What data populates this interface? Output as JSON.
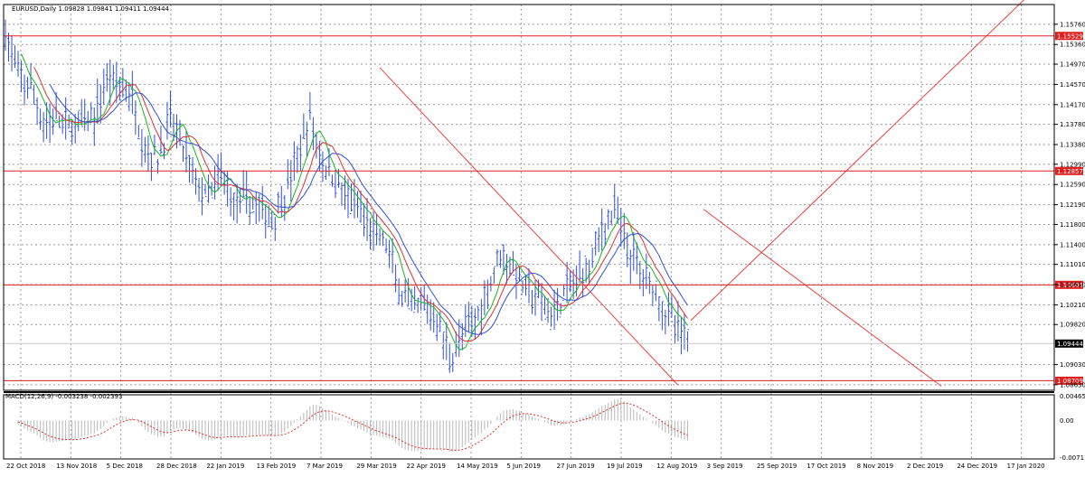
{
  "header": {
    "symbol_line": "EURUSD,Daily  1.09828 1.09841 1.09411 1.09444"
  },
  "macd": {
    "label": "MACD(12,26,9) -0.003238 -0.002393"
  },
  "colors": {
    "bars": "#2f50d8",
    "ma_fast": "#17b817",
    "ma_mid": "#e03030",
    "ma_slow": "#2f50d8",
    "levels": "#e02020",
    "trendlines": "#f04040",
    "macd_signal": "#e03030",
    "macd_hist": "#b8b8b8"
  },
  "chart_data": {
    "type": "candlestick-bars",
    "symbol": "EURUSD",
    "timeframe": "Daily",
    "ohlc_last": {
      "open": 1.09828,
      "high": 1.09841,
      "low": 1.09411,
      "close": 1.09444
    },
    "price_axis_ticks": [
      "1.15760",
      "1.15360",
      "1.14970",
      "1.14570",
      "1.14170",
      "1.13780",
      "1.13380",
      "1.12990",
      "1.12590",
      "1.12190",
      "1.11800",
      "1.11400",
      "1.11010",
      "1.10610",
      "1.10210",
      "1.09820",
      "1.09030",
      "1.08630"
    ],
    "price_range": [
      1.0852,
      1.1615
    ],
    "highlighted_levels": [
      {
        "value": 1.15529,
        "label": "1.15529"
      },
      {
        "value": 1.12857,
        "label": "1.12857"
      },
      {
        "value": 1.10605,
        "label": "1.10605"
      },
      {
        "value": 1.08709,
        "label": "1.08709"
      }
    ],
    "current_price_label": "1.09444",
    "date_axis_labels": [
      "22 Oct 2018",
      "13 Nov 2018",
      "5 Dec 2018",
      "28 Dec 2018",
      "22 Jan 2019",
      "13 Feb 2019",
      "7 Mar 2019",
      "29 Mar 2019",
      "22 Apr 2019",
      "14 May 2019",
      "5 Jun 2019",
      "27 Jun 2019",
      "19 Jul 2019",
      "12 Aug 2019",
      "3 Sep 2019",
      "25 Sep 2019",
      "17 Oct 2019",
      "8 Nov 2019",
      "2 Dec 2019",
      "24 Dec 2019",
      "17 Jan 2020"
    ],
    "price_path_points": [
      [
        0,
        1.156
      ],
      [
        4,
        1.147
      ],
      [
        8,
        1.145
      ],
      [
        12,
        1.138
      ],
      [
        16,
        1.139
      ],
      [
        20,
        1.137
      ],
      [
        24,
        1.138
      ],
      [
        28,
        1.139
      ],
      [
        32,
        1.147
      ],
      [
        36,
        1.146
      ],
      [
        40,
        1.143
      ],
      [
        44,
        1.133
      ],
      [
        48,
        1.131
      ],
      [
        52,
        1.139
      ],
      [
        56,
        1.133
      ],
      [
        60,
        1.126
      ],
      [
        64,
        1.123
      ],
      [
        68,
        1.128
      ],
      [
        72,
        1.122
      ],
      [
        76,
        1.123
      ],
      [
        80,
        1.121
      ],
      [
        84,
        1.119
      ],
      [
        88,
        1.124
      ],
      [
        92,
        1.131
      ],
      [
        96,
        1.139
      ],
      [
        100,
        1.13
      ],
      [
        104,
        1.127
      ],
      [
        108,
        1.123
      ],
      [
        112,
        1.12
      ],
      [
        116,
        1.116
      ],
      [
        120,
        1.114
      ],
      [
        124,
        1.105
      ],
      [
        128,
        1.101
      ],
      [
        132,
        1.102
      ],
      [
        136,
        1.099
      ],
      [
        140,
        1.092
      ],
      [
        144,
        1.096
      ],
      [
        148,
        1.099
      ],
      [
        152,
        1.105
      ],
      [
        156,
        1.113
      ],
      [
        160,
        1.109
      ],
      [
        164,
        1.105
      ],
      [
        168,
        1.103
      ],
      [
        172,
        1.1
      ],
      [
        176,
        1.104
      ],
      [
        180,
        1.107
      ],
      [
        184,
        1.11
      ],
      [
        188,
        1.117
      ],
      [
        192,
        1.121
      ],
      [
        196,
        1.113
      ],
      [
        200,
        1.109
      ],
      [
        204,
        1.106
      ],
      [
        208,
        1.101
      ],
      [
        212,
        1.097
      ],
      [
        215,
        1.0944
      ]
    ],
    "trendlines": [
      {
        "from": [
          118,
          1.149
        ],
        "to": [
          212,
          1.0862
        ]
      },
      {
        "from": [
          216,
          1.099
        ],
        "to": [
          322,
          1.163
        ]
      },
      {
        "from": [
          220,
          1.121
        ],
        "to": [
          295,
          1.086
        ]
      }
    ],
    "macd_axis_ticks": [
      "0.004657",
      "0.00",
      "-0.007119"
    ],
    "macd_range": [
      -0.00735,
      0.0049
    ]
  }
}
